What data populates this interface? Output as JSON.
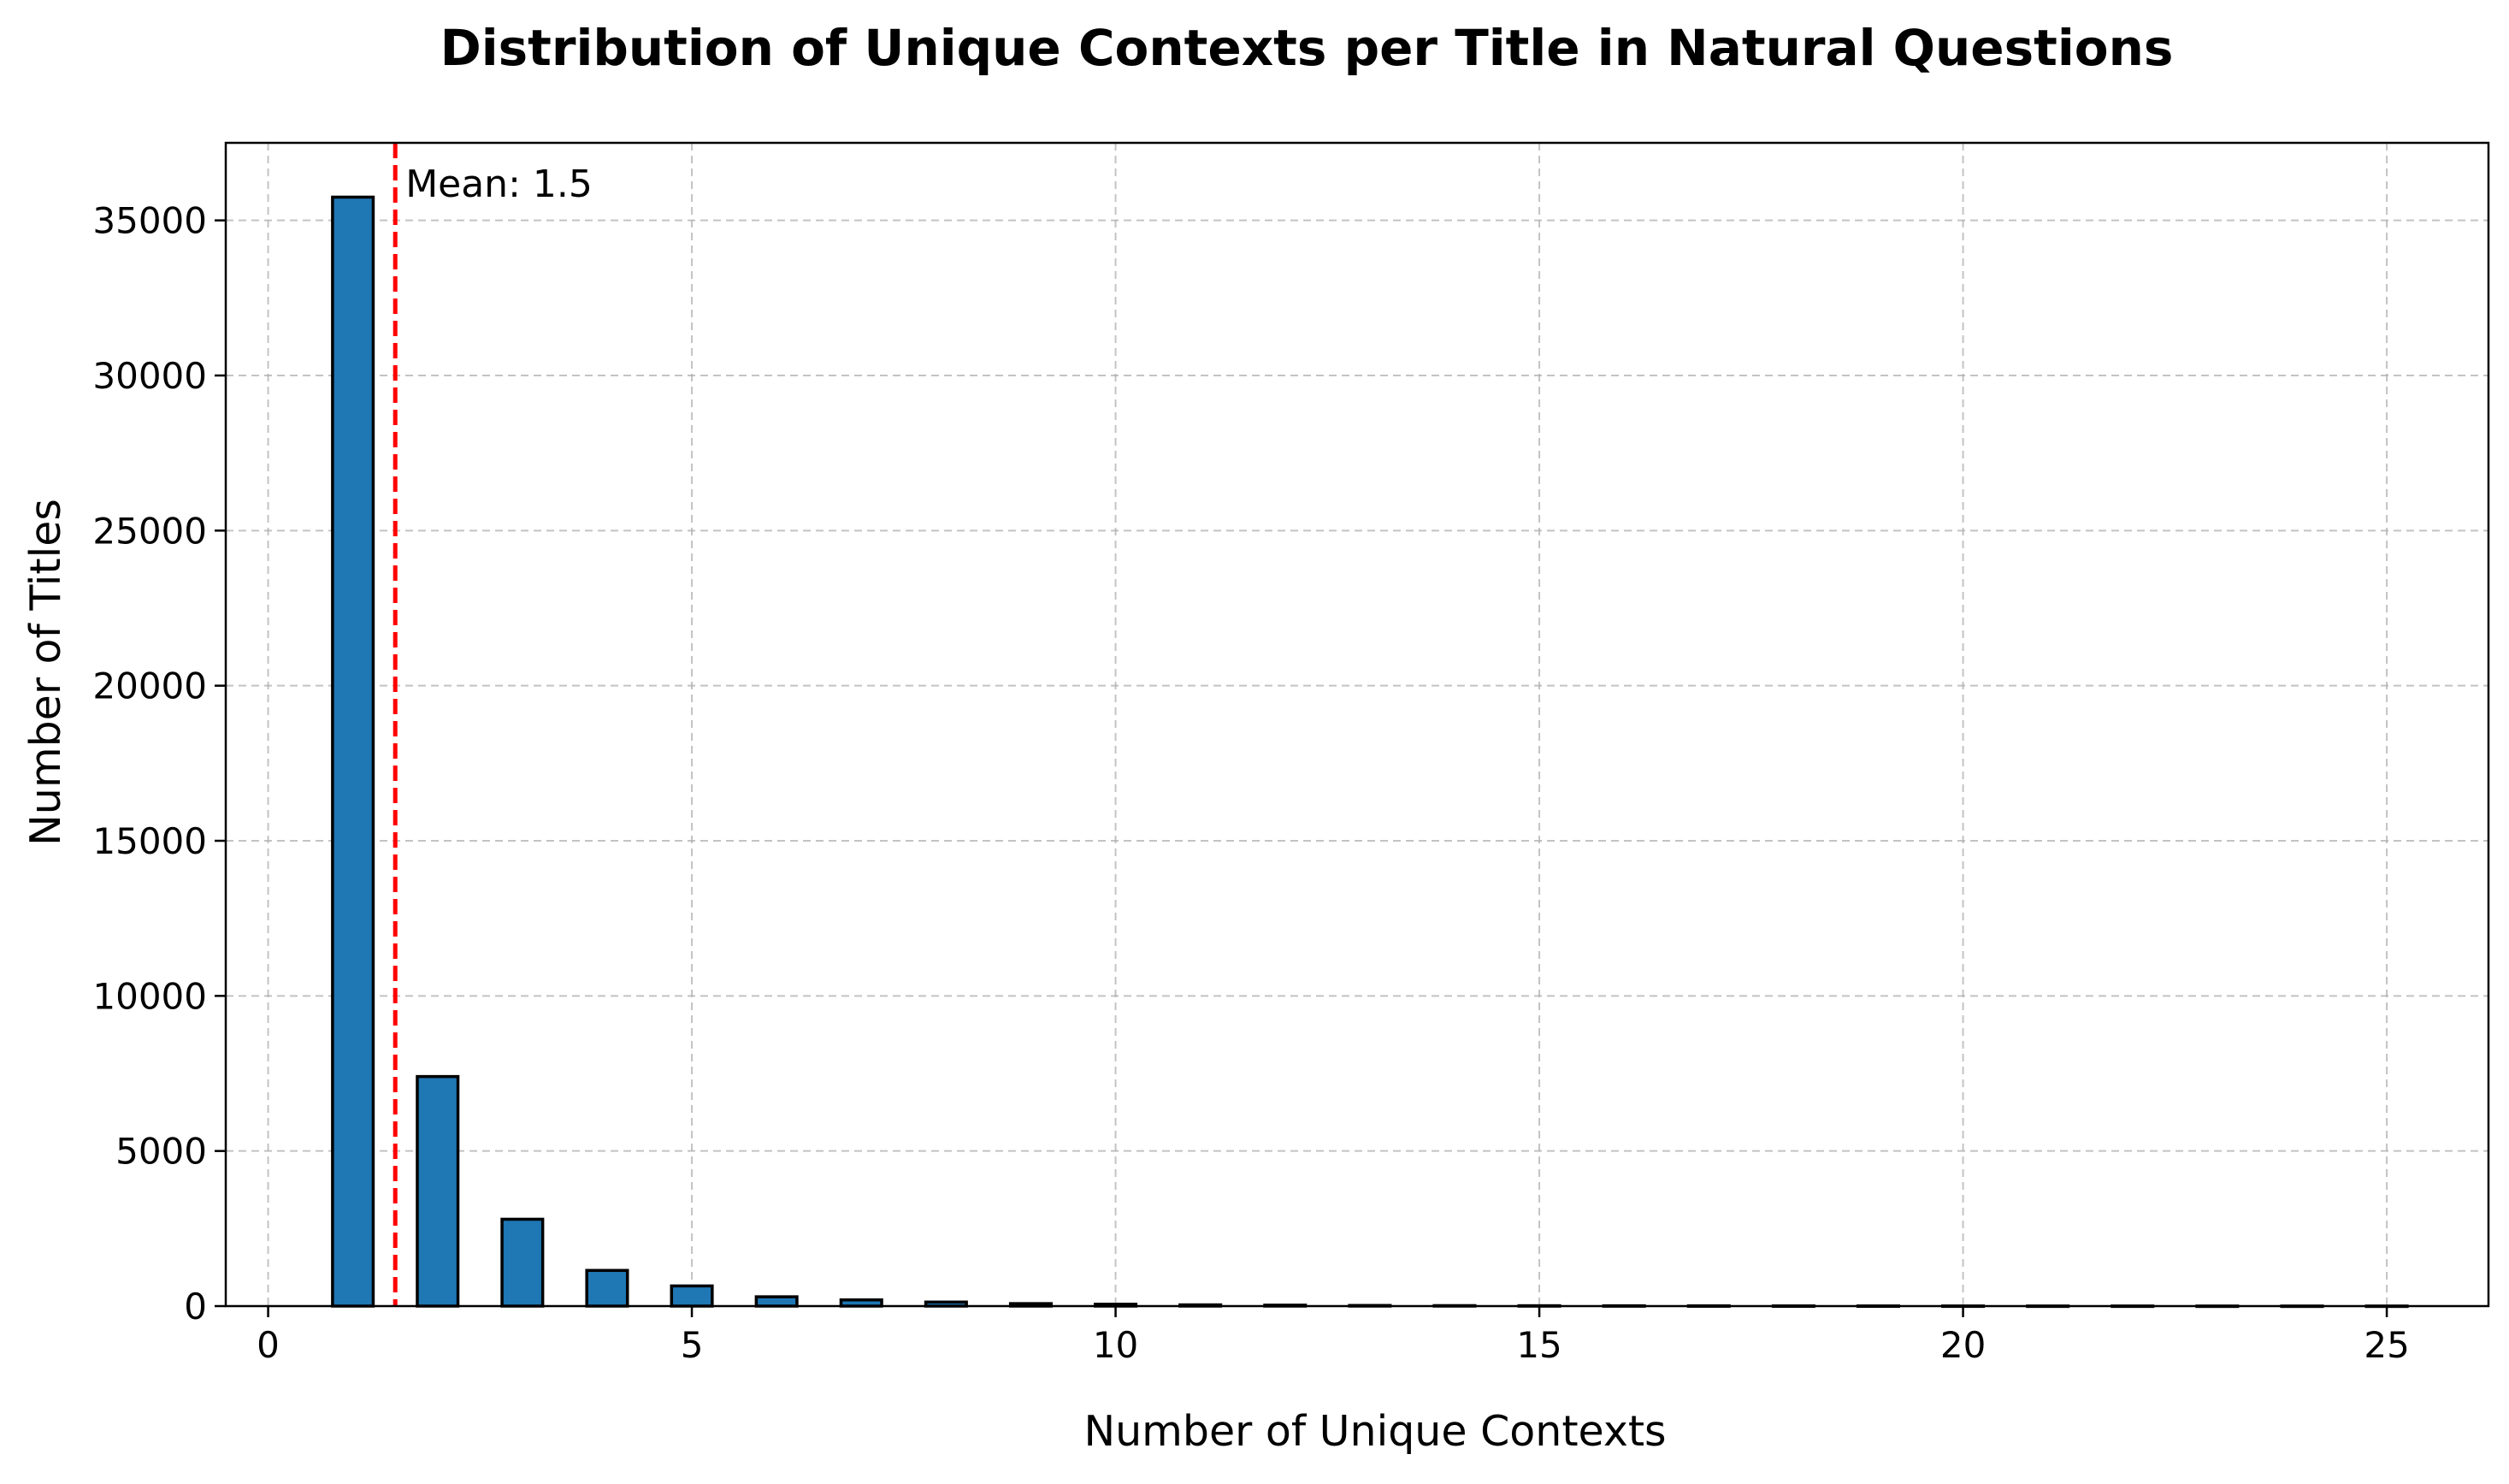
{
  "chart_data": {
    "type": "bar",
    "title": "Distribution of Unique Contexts per Title in Natural Questions",
    "xlabel": "Number of Unique Contexts",
    "ylabel": "Number of Titles",
    "xlim": [
      -0.5,
      26.2
    ],
    "ylim": [
      0,
      37500
    ],
    "x_ticks": [
      0,
      5,
      10,
      15,
      20,
      25
    ],
    "y_ticks": [
      0,
      5000,
      10000,
      15000,
      20000,
      25000,
      30000,
      35000
    ],
    "grid": true,
    "bar_color": "#1f77b4",
    "bar_edge_color": "#000000",
    "bar_width": 0.48,
    "x": [
      1,
      2,
      3,
      4,
      5,
      6,
      7,
      8,
      9,
      10,
      11,
      12,
      13,
      14,
      15,
      16,
      17,
      18,
      19,
      20,
      21,
      22,
      23,
      24,
      25
    ],
    "values": [
      35750,
      7400,
      2800,
      1150,
      650,
      300,
      200,
      130,
      80,
      60,
      40,
      30,
      20,
      15,
      12,
      10,
      8,
      6,
      5,
      4,
      3,
      3,
      2,
      2,
      2
    ],
    "mean_line": {
      "value": 1.5,
      "label": "Mean: 1.5",
      "color": "#ff0000"
    }
  }
}
